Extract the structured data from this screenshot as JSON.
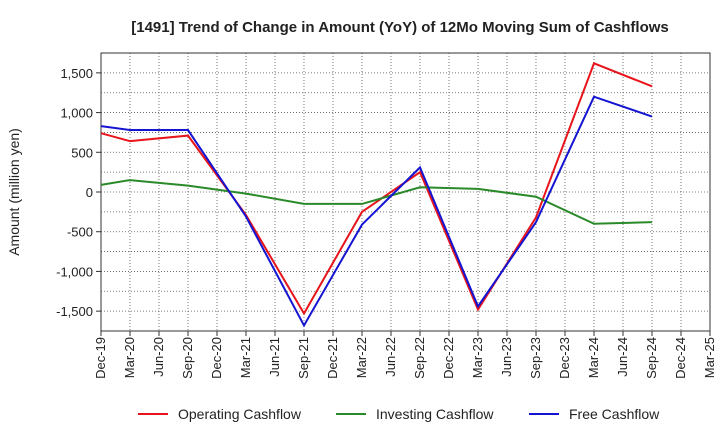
{
  "chart_data": {
    "type": "line",
    "title": "[1491]  Trend of Change in Amount (YoY) of 12Mo Moving Sum of Cashflows",
    "xlabel": "",
    "ylabel": "Amount (million yen)",
    "ylim": [
      -1750,
      1750
    ],
    "yticks": [
      -1500,
      -1000,
      -500,
      0,
      500,
      1000,
      1500
    ],
    "ytick_labels": [
      "-1,500",
      "-1,000",
      "-500",
      "0",
      "500",
      "1,000",
      "1,500"
    ],
    "categories": [
      "Dec-19",
      "Mar-20",
      "Jun-20",
      "Sep-20",
      "Dec-20",
      "Mar-21",
      "Jun-21",
      "Sep-21",
      "Dec-21",
      "Mar-22",
      "Jun-22",
      "Sep-22",
      "Dec-22",
      "Mar-23",
      "Jun-23",
      "Sep-23",
      "Dec-23",
      "Mar-24",
      "Jun-24",
      "Sep-24",
      "Dec-24",
      "Mar-25"
    ],
    "grid": true,
    "legend_position": "bottom",
    "series": [
      {
        "name": "Operating Cashflow",
        "color": "#e8141b",
        "values": [
          740,
          640,
          null,
          710,
          null,
          -290,
          null,
          -1530,
          null,
          -250,
          null,
          250,
          null,
          -1480,
          null,
          -320,
          null,
          1620,
          null,
          1330,
          null,
          null
        ]
      },
      {
        "name": "Investing Cashflow",
        "color": "#2a8a2a",
        "values": [
          90,
          150,
          null,
          80,
          null,
          -20,
          null,
          -150,
          null,
          -150,
          null,
          60,
          null,
          40,
          null,
          -60,
          null,
          -400,
          null,
          -380,
          null,
          null
        ]
      },
      {
        "name": "Free Cashflow",
        "color": "#1414d2",
        "values": [
          830,
          780,
          null,
          780,
          null,
          -310,
          null,
          -1680,
          null,
          -410,
          null,
          310,
          null,
          -1440,
          null,
          -380,
          null,
          1200,
          null,
          950,
          null,
          null
        ]
      }
    ]
  }
}
